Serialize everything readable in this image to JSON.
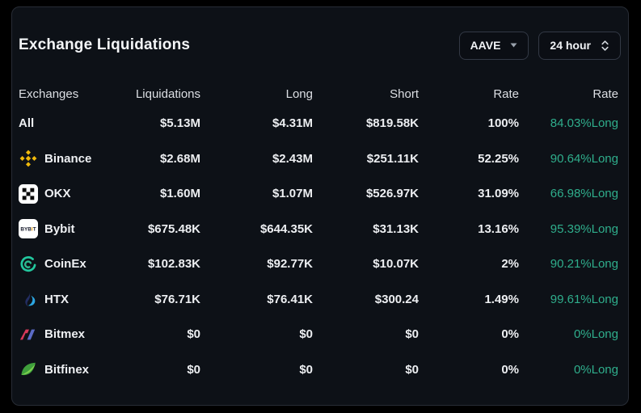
{
  "card": {
    "title": "Exchange Liquidations",
    "controls": {
      "coin_select": "AAVE",
      "time_select": "24 hour"
    },
    "table": {
      "headers": [
        "Exchanges",
        "Liquidations",
        "Long",
        "Short",
        "Rate",
        "Rate"
      ],
      "rows": [
        {
          "exchange": "All",
          "icon": "none",
          "liquidations": "$5.13M",
          "long": "$4.31M",
          "short": "$819.58K",
          "rate": "100%",
          "long_rate": "84.03%Long"
        },
        {
          "exchange": "Binance",
          "icon": "binance-icon",
          "liquidations": "$2.68M",
          "long": "$2.43M",
          "short": "$251.11K",
          "rate": "52.25%",
          "long_rate": "90.64%Long"
        },
        {
          "exchange": "OKX",
          "icon": "okx-icon",
          "liquidations": "$1.60M",
          "long": "$1.07M",
          "short": "$526.97K",
          "rate": "31.09%",
          "long_rate": "66.98%Long"
        },
        {
          "exchange": "Bybit",
          "icon": "bybit-icon",
          "liquidations": "$675.48K",
          "long": "$644.35K",
          "short": "$31.13K",
          "rate": "13.16%",
          "long_rate": "95.39%Long"
        },
        {
          "exchange": "CoinEx",
          "icon": "coinex-icon",
          "liquidations": "$102.83K",
          "long": "$92.77K",
          "short": "$10.07K",
          "rate": "2%",
          "long_rate": "90.21%Long"
        },
        {
          "exchange": "HTX",
          "icon": "htx-icon",
          "liquidations": "$76.71K",
          "long": "$76.41K",
          "short": "$300.24",
          "rate": "1.49%",
          "long_rate": "99.61%Long"
        },
        {
          "exchange": "Bitmex",
          "icon": "bitmex-icon",
          "liquidations": "$0",
          "long": "$0",
          "short": "$0",
          "rate": "0%",
          "long_rate": "0%Long"
        },
        {
          "exchange": "Bitfinex",
          "icon": "bitfinex-icon",
          "liquidations": "$0",
          "long": "$0",
          "short": "$0",
          "rate": "0%",
          "long_rate": "0%Long"
        }
      ]
    }
  },
  "colors": {
    "long_rate_green": "#2fae8c",
    "card_background": "#0d1117",
    "page_background": "#000000",
    "binance_yellow": "#f0b90b",
    "bybit_accent_orange": "#f7a600",
    "coinex_teal": "#22c79e",
    "htx_blue": "#2ca6e2",
    "bitmex_red": "#d8395a",
    "bitmex_blue": "#5b6bc6",
    "bitfinex_green": "#7ed14f"
  }
}
